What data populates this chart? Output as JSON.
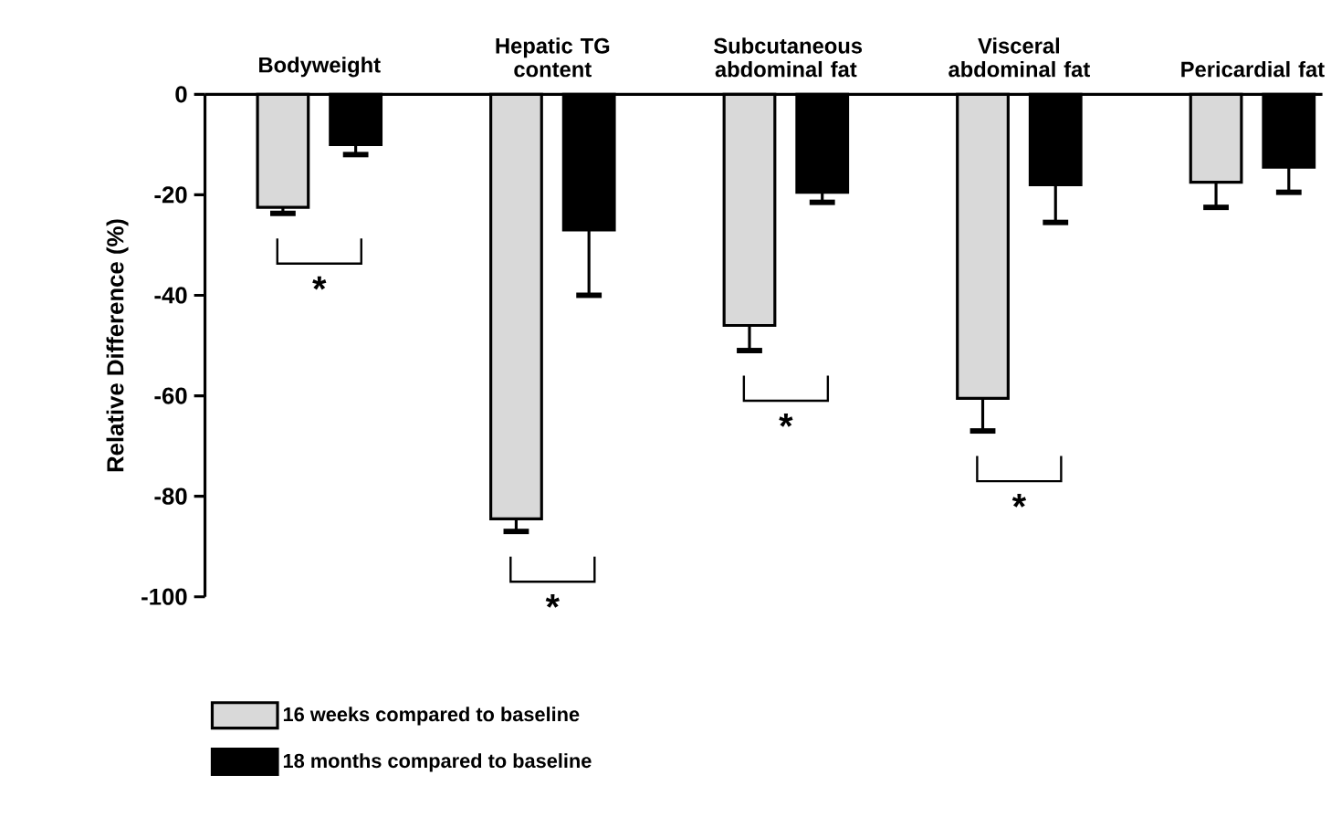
{
  "chart_data": {
    "type": "bar",
    "ylabel": "Relative Difference (%)",
    "categories": [
      "Bodyweight",
      "Hepatic TG content",
      "Subcutaneous abdominal fat",
      "Visceral abdominal fat",
      "Pericardial fat"
    ],
    "series": [
      {
        "name": "16 weeks compared to baseline",
        "color": "#d9d9d9",
        "values": [
          -22.5,
          -84.5,
          -46,
          -60.5,
          -17.5
        ],
        "errors": [
          [
            -23.7,
            -22.5
          ],
          [
            -87,
            -84.5
          ],
          [
            -51,
            -46
          ],
          [
            -67,
            -60.5
          ],
          [
            -22.5,
            -17.5
          ]
        ]
      },
      {
        "name": "18 months compared to baseline",
        "color": "#000000",
        "values": [
          -10,
          -27,
          -19.5,
          -18,
          -14.5
        ],
        "errors": [
          [
            -12,
            -10
          ],
          [
            -40,
            -27
          ],
          [
            -21.5,
            -19.5
          ],
          [
            -25.5,
            -18
          ],
          [
            -19.5,
            -14.5
          ]
        ]
      }
    ],
    "ylim": [
      -100,
      0
    ],
    "yticks": [
      -100,
      -80,
      -60,
      -40,
      -20,
      0
    ],
    "legend": "bottom",
    "grid": false,
    "annotations": [
      "*",
      "*",
      "*",
      "*"
    ]
  }
}
